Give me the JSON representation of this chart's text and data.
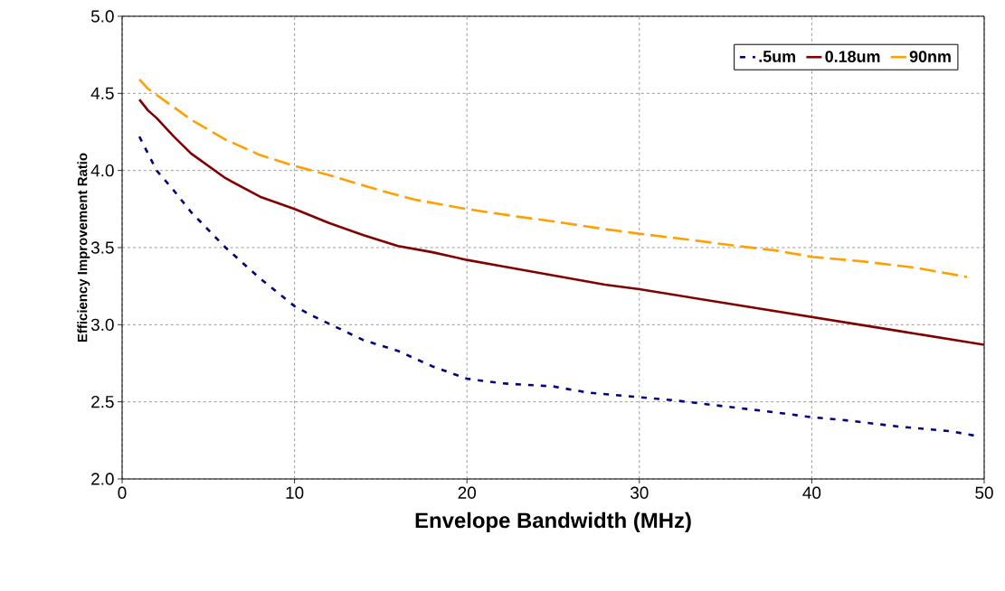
{
  "chart_data": {
    "type": "line",
    "xlabel": "Envelope Bandwidth (MHz)",
    "ylabel": "Efficiency Improvement Ratio",
    "xlim": [
      0,
      50
    ],
    "ylim": [
      2.0,
      5.0
    ],
    "xticks": [
      0,
      10,
      20,
      30,
      40,
      50
    ],
    "yticks": [
      {
        "value": 2.0,
        "label": "2.0"
      },
      {
        "value": 2.5,
        "label": "2.5"
      },
      {
        "value": 3.0,
        "label": "3.0"
      },
      {
        "value": 3.5,
        "label": "3.5"
      },
      {
        "value": 4.0,
        "label": "4.0"
      },
      {
        "value": 4.5,
        "label": "4.5"
      },
      {
        "value": 5.0,
        "label": "5.0"
      }
    ],
    "grid": true,
    "legend": "top right",
    "marker": "none",
    "series": [
      {
        "name": ".5um",
        "color": "#000080",
        "line_style": "dotted",
        "x": [
          1,
          2,
          3,
          4,
          6,
          8,
          10,
          11,
          14,
          16,
          18,
          20,
          22,
          25,
          27,
          30,
          32,
          35,
          38,
          40,
          42,
          45,
          48,
          49.5
        ],
        "values": [
          4.22,
          4.0,
          3.87,
          3.73,
          3.5,
          3.3,
          3.12,
          3.06,
          2.9,
          2.83,
          2.73,
          2.65,
          2.62,
          2.6,
          2.56,
          2.53,
          2.51,
          2.47,
          2.43,
          2.4,
          2.38,
          2.34,
          2.31,
          2.28
        ]
      },
      {
        "name": "0.18um",
        "color": "#800000",
        "line_style": "solid",
        "x": [
          1,
          1.5,
          2,
          3,
          4,
          6,
          8,
          10,
          12,
          14,
          16,
          18,
          20,
          22,
          25,
          28,
          30,
          35,
          40,
          45,
          50
        ],
        "values": [
          4.46,
          4.39,
          4.34,
          4.22,
          4.11,
          3.95,
          3.83,
          3.75,
          3.66,
          3.58,
          3.51,
          3.47,
          3.42,
          3.38,
          3.32,
          3.26,
          3.23,
          3.14,
          3.05,
          2.96,
          2.87
        ]
      },
      {
        "name": "90nm",
        "color": "#ffa000",
        "line_style": "dashed",
        "x": [
          1,
          1.5,
          2,
          3,
          4,
          6,
          8,
          10,
          12,
          15,
          17,
          20,
          23,
          25,
          28,
          30,
          33,
          35,
          38,
          40,
          43,
          46,
          49
        ],
        "values": [
          4.59,
          4.53,
          4.49,
          4.41,
          4.33,
          4.2,
          4.1,
          4.03,
          3.97,
          3.87,
          3.81,
          3.75,
          3.7,
          3.67,
          3.62,
          3.59,
          3.55,
          3.52,
          3.48,
          3.44,
          3.41,
          3.37,
          3.31
        ]
      }
    ]
  }
}
